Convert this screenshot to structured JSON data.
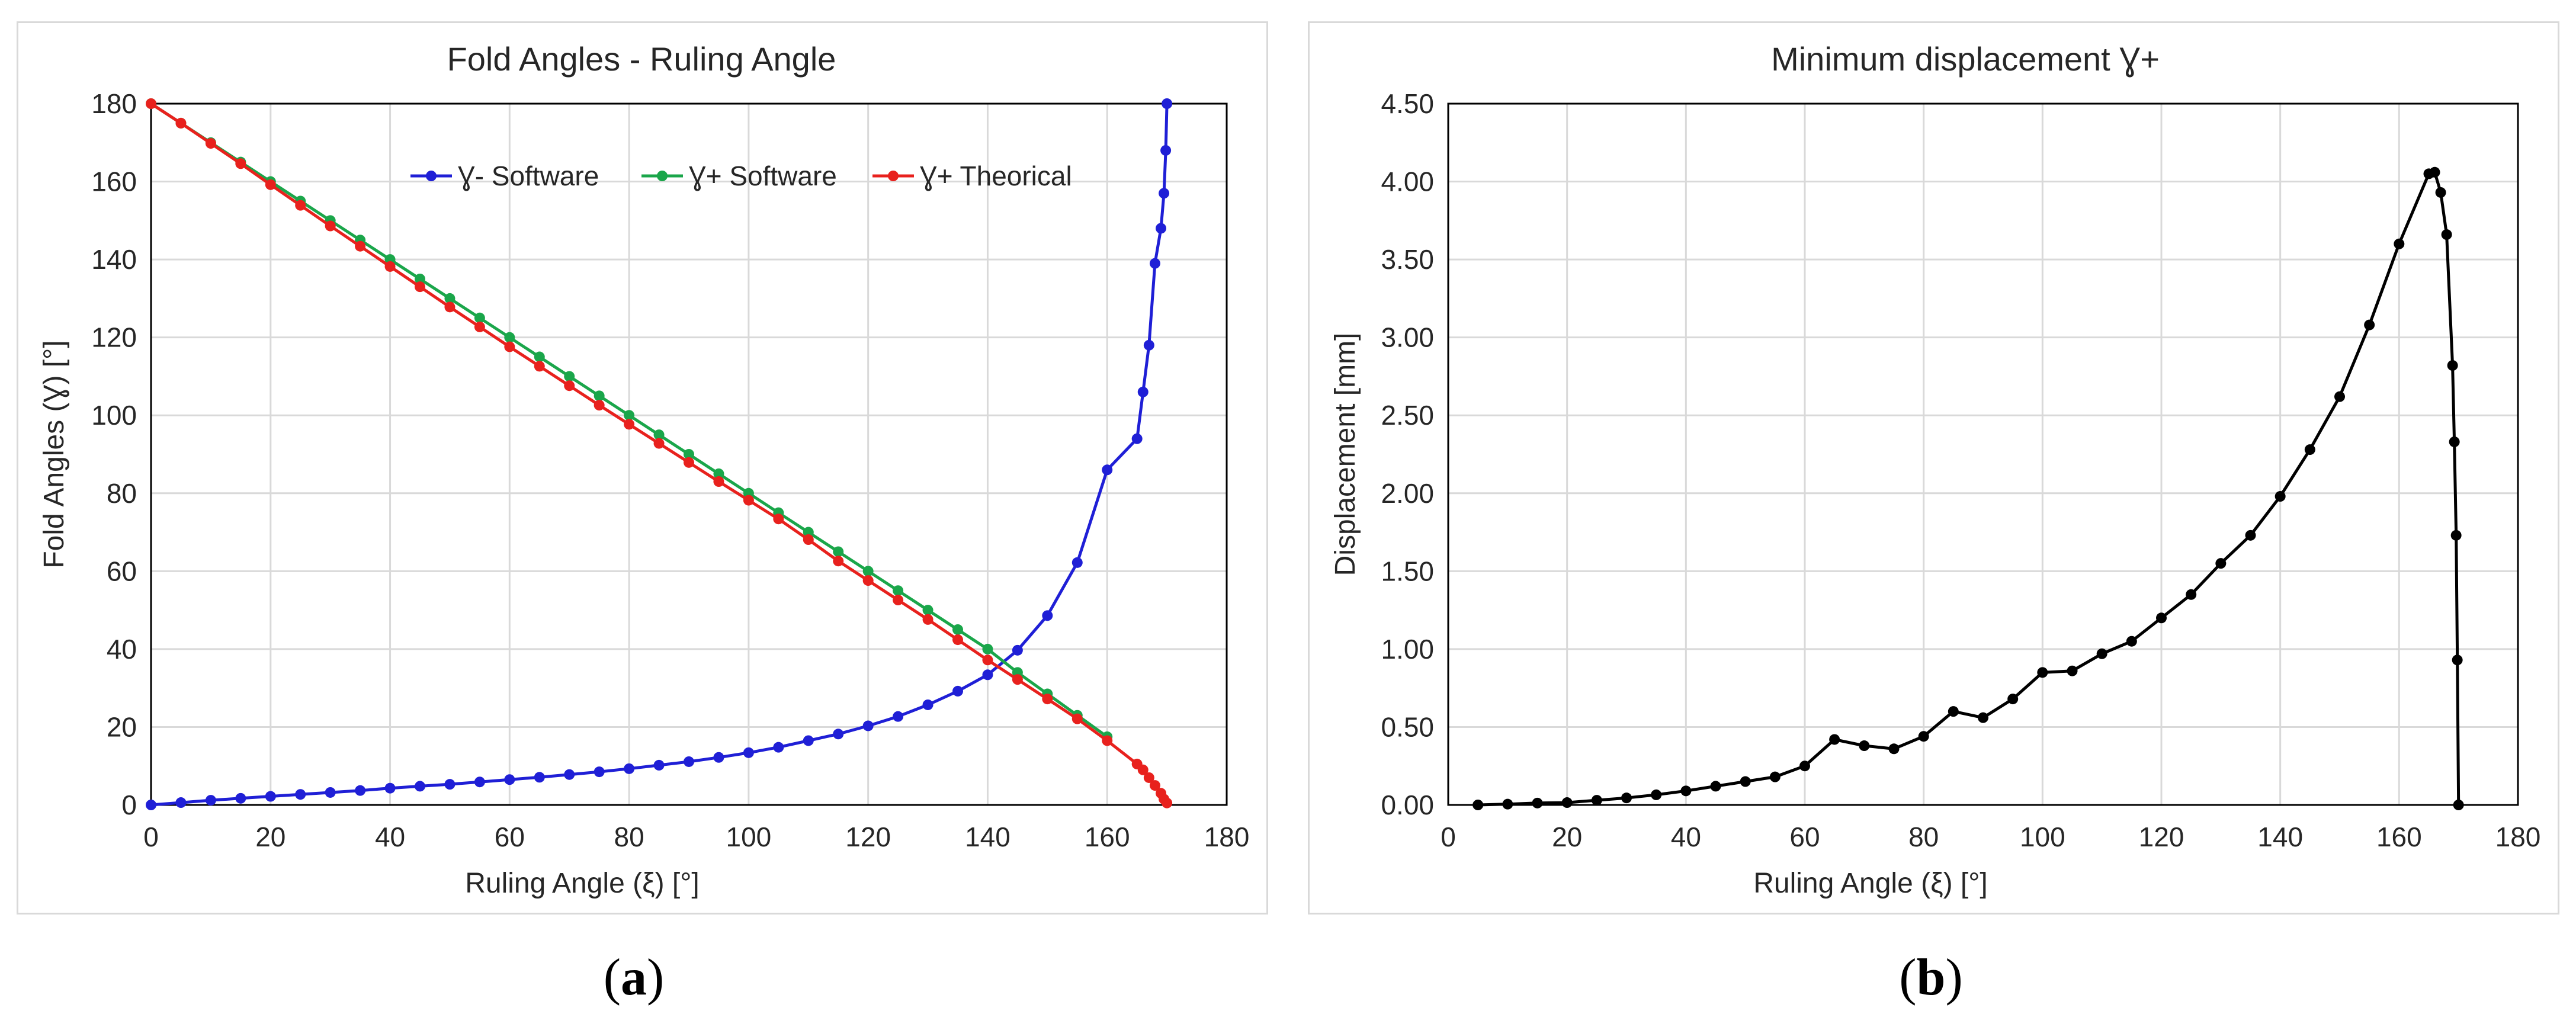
{
  "chart_data": [
    {
      "type": "line",
      "title": "Fold Angles - Ruling Angle",
      "xlabel": "Ruling Angle (ξ) [°]",
      "ylabel": "Fold Angles (Ɣ) [°]",
      "xlim": [
        0,
        180
      ],
      "ylim": [
        0,
        180
      ],
      "xticks": [
        0,
        20,
        40,
        60,
        80,
        100,
        120,
        140,
        160,
        180
      ],
      "yticks": [
        0,
        20,
        40,
        60,
        80,
        100,
        120,
        140,
        160,
        180
      ],
      "ytick_labels": [
        "0",
        "20",
        "40",
        "60",
        "80",
        "100",
        "120",
        "140",
        "160",
        "180"
      ],
      "grid": true,
      "legend_position": "top-right",
      "series": [
        {
          "name": "Ɣ- Software",
          "color": "#1f1fd6",
          "x": [
            0,
            5,
            10,
            15,
            20,
            25,
            30,
            35,
            40,
            45,
            50,
            55,
            60,
            65,
            70,
            75,
            80,
            85,
            90,
            95,
            100,
            105,
            110,
            115,
            120,
            125,
            130,
            135,
            140,
            145,
            150,
            155,
            160,
            165,
            166,
            167,
            168,
            169,
            169.5,
            169.8,
            170
          ],
          "y": [
            0,
            0.6,
            1.2,
            1.7,
            2.2,
            2.7,
            3.2,
            3.7,
            4.3,
            4.8,
            5.3,
            5.9,
            6.5,
            7.1,
            7.8,
            8.5,
            9.3,
            10.2,
            11.1,
            12.2,
            13.4,
            14.8,
            16.5,
            18.2,
            20.3,
            22.7,
            25.7,
            29.2,
            33.4,
            39.7,
            48.6,
            62.2,
            86.0,
            94.0,
            106.0,
            118.0,
            139.0,
            148.0,
            157.0,
            168.0,
            180.0
          ]
        },
        {
          "name": "Ɣ+ Software",
          "color": "#1aa64a",
          "x": [
            0,
            5,
            10,
            15,
            20,
            25,
            30,
            35,
            40,
            45,
            50,
            55,
            60,
            65,
            70,
            75,
            80,
            85,
            90,
            95,
            100,
            105,
            110,
            115,
            120,
            125,
            130,
            135,
            140,
            145,
            150,
            155,
            160
          ],
          "y": [
            180,
            175,
            170,
            165,
            160,
            155,
            150,
            145,
            140,
            135,
            130,
            125,
            120,
            115,
            110,
            105,
            100,
            95,
            90,
            85,
            80,
            75,
            70,
            65,
            60,
            55,
            50,
            45,
            40,
            34,
            28.5,
            23,
            17.5
          ]
        },
        {
          "name": "Ɣ+ Theorical",
          "color": "#e8211d",
          "x": [
            0,
            5,
            10,
            15,
            20,
            25,
            30,
            35,
            40,
            45,
            50,
            55,
            60,
            65,
            70,
            75,
            80,
            85,
            90,
            95,
            100,
            105,
            110,
            115,
            120,
            125,
            130,
            135,
            140,
            145,
            150,
            155,
            160,
            165,
            166,
            167,
            168,
            169,
            169.5,
            170
          ],
          "y": [
            180,
            175,
            169.8,
            164.6,
            159.2,
            153.9,
            148.6,
            143.4,
            138.2,
            133,
            127.8,
            122.7,
            117.6,
            112.6,
            107.6,
            102.6,
            97.7,
            92.8,
            87.9,
            83,
            78.2,
            73.4,
            68.1,
            62.6,
            57.6,
            52.6,
            47.6,
            42.4,
            37.2,
            32.2,
            27.2,
            22.1,
            16.5,
            10.5,
            9,
            7,
            5,
            3,
            1.5,
            0.5
          ]
        }
      ]
    },
    {
      "type": "line",
      "title": "Minimum displacement Ɣ+",
      "xlabel": "Ruling Angle (ξ) [°]",
      "ylabel": "Displacement [mm]",
      "xlim": [
        0,
        180
      ],
      "ylim": [
        0,
        4.5
      ],
      "xticks": [
        0,
        20,
        40,
        60,
        80,
        100,
        120,
        140,
        160,
        180
      ],
      "yticks": [
        0,
        0.5,
        1,
        1.5,
        2,
        2.5,
        3,
        3.5,
        4,
        4.5
      ],
      "ytick_labels": [
        "0.00",
        "0.50",
        "1.00",
        "1.50",
        "2.00",
        "2.50",
        "3.00",
        "3.50",
        "4.00",
        "4.50"
      ],
      "grid": true,
      "series": [
        {
          "name": "Displacement",
          "color": "#000000",
          "x": [
            5,
            10,
            15,
            20,
            25,
            30,
            35,
            40,
            45,
            50,
            55,
            60,
            65,
            70,
            75,
            80,
            85,
            90,
            95,
            100,
            105,
            110,
            115,
            120,
            125,
            130,
            135,
            140,
            145,
            150,
            155,
            160,
            165,
            166,
            167,
            168,
            169,
            169.3,
            169.6,
            169.8,
            170
          ],
          "y": [
            0,
            0.005,
            0.012,
            0.015,
            0.03,
            0.045,
            0.065,
            0.09,
            0.12,
            0.15,
            0.18,
            0.25,
            0.42,
            0.38,
            0.36,
            0.44,
            0.6,
            0.56,
            0.68,
            0.85,
            0.86,
            0.97,
            1.05,
            1.2,
            1.35,
            1.55,
            1.73,
            1.98,
            2.28,
            2.62,
            3.08,
            3.6,
            4.05,
            4.06,
            3.93,
            3.66,
            2.82,
            2.33,
            1.73,
            0.93,
            0
          ]
        }
      ]
    }
  ],
  "captions": {
    "a": "a",
    "b": "b"
  }
}
